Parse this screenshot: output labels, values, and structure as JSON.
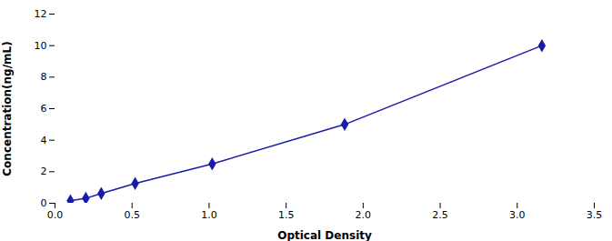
{
  "chart_data": {
    "type": "line",
    "xlabel": "Optical Density",
    "ylabel": "Concentration(ng/mL)",
    "x": [
      0.1,
      0.2,
      0.3,
      0.52,
      1.02,
      1.88,
      3.16
    ],
    "values": [
      0.156,
      0.312,
      0.625,
      1.25,
      2.5,
      5.0,
      10.0
    ],
    "yerr": [
      0.0039,
      0.0078,
      0.015625,
      0.03125,
      0.0625,
      0.125,
      0.25
    ],
    "color": "#1a1aaa",
    "marker": "diamond",
    "line_style": "solid",
    "xlim": [
      0,
      3.5
    ],
    "ylim": [
      0,
      12
    ],
    "xticks": [
      {
        "value": 0,
        "label": "0.0"
      },
      0.5,
      {
        "value": 1.0,
        "label": "1.0"
      },
      1.5,
      {
        "value": 2.0,
        "label": "2.0"
      },
      2.5,
      {
        "value": 3.0,
        "label": "3.0"
      },
      3.5
    ],
    "yticks": [
      0,
      2,
      4,
      6,
      8,
      10,
      12
    ],
    "grid": false
  }
}
